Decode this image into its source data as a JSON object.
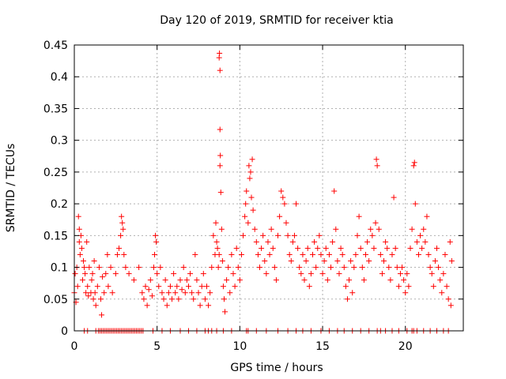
{
  "chart_data": {
    "type": "scatter",
    "title": "Day 120 of 2019, SRMTID for receiver ktia",
    "xlabel": "GPS time / hours",
    "ylabel": "SRMTID / TECUs",
    "xlim": [
      0,
      23.5
    ],
    "ylim": [
      0,
      0.45
    ],
    "xticks": [
      0,
      5,
      10,
      15,
      20
    ],
    "xtick_labels": [
      "0",
      "5",
      "10",
      "15",
      "20"
    ],
    "yticks": [
      0,
      0.05,
      0.1,
      0.15,
      0.2,
      0.25,
      0.3,
      0.35,
      0.4,
      0.45
    ],
    "ytick_labels": [
      "0",
      "0.05",
      "0.1",
      "0.15",
      "0.2",
      "0.25",
      "0.3",
      "0.35",
      "0.4",
      "0.45"
    ],
    "grid": true,
    "marker": "+",
    "color": "#ff0000",
    "series": [
      {
        "name": "SRMTID",
        "points": [
          [
            0.0,
            0.06
          ],
          [
            0.05,
            0.09
          ],
          [
            0.1,
            0.045
          ],
          [
            0.15,
            0.1
          ],
          [
            0.2,
            0.07
          ],
          [
            0.25,
            0.18
          ],
          [
            0.3,
            0.14
          ],
          [
            0.3,
            0.16
          ],
          [
            0.35,
            0.12
          ],
          [
            0.4,
            0.15
          ],
          [
            0.45,
            0.13
          ],
          [
            0.5,
            0.08
          ],
          [
            0.55,
            0.11
          ],
          [
            0.6,
            0.1
          ],
          [
            0.65,
            0.09
          ],
          [
            0.7,
            0.06
          ],
          [
            0.75,
            0.14
          ],
          [
            0.8,
            0.07
          ],
          [
            0.85,
            0.055
          ],
          [
            0.9,
            0.1
          ],
          [
            1.0,
            0.06
          ],
          [
            1.05,
            0.08
          ],
          [
            1.1,
            0.09
          ],
          [
            1.15,
            0.05
          ],
          [
            1.2,
            0.11
          ],
          [
            1.25,
            0.06
          ],
          [
            1.3,
            0.04
          ],
          [
            1.4,
            0.07
          ],
          [
            1.5,
            0.1
          ],
          [
            1.6,
            0.05
          ],
          [
            1.7,
            0.085
          ],
          [
            1.8,
            0.06
          ],
          [
            1.9,
            0.09
          ],
          [
            2.0,
            0.12
          ],
          [
            2.05,
            0.07
          ],
          [
            2.2,
            0.1
          ],
          [
            2.3,
            0.06
          ],
          [
            1.65,
            0.025
          ],
          [
            2.5,
            0.09
          ],
          [
            2.6,
            0.12
          ],
          [
            2.7,
            0.13
          ],
          [
            2.8,
            0.15
          ],
          [
            2.85,
            0.18
          ],
          [
            2.9,
            0.17
          ],
          [
            2.95,
            0.16
          ],
          [
            3.0,
            0.12
          ],
          [
            3.1,
            0.1
          ],
          [
            3.3,
            0.09
          ],
          [
            3.6,
            0.08
          ],
          [
            3.9,
            0.1
          ],
          [
            4.1,
            0.06
          ],
          [
            4.2,
            0.05
          ],
          [
            4.3,
            0.07
          ],
          [
            4.4,
            0.04
          ],
          [
            4.5,
            0.065
          ],
          [
            4.6,
            0.08
          ],
          [
            4.7,
            0.055
          ],
          [
            4.8,
            0.1
          ],
          [
            4.85,
            0.12
          ],
          [
            4.9,
            0.15
          ],
          [
            4.95,
            0.14
          ],
          [
            5.0,
            0.09
          ],
          [
            5.1,
            0.07
          ],
          [
            5.2,
            0.1
          ],
          [
            5.3,
            0.06
          ],
          [
            5.4,
            0.05
          ],
          [
            5.5,
            0.08
          ],
          [
            5.6,
            0.04
          ],
          [
            5.7,
            0.06
          ],
          [
            5.8,
            0.07
          ],
          [
            5.9,
            0.05
          ],
          [
            6.0,
            0.09
          ],
          [
            6.1,
            0.06
          ],
          [
            6.2,
            0.07
          ],
          [
            6.3,
            0.05
          ],
          [
            6.4,
            0.08
          ],
          [
            6.5,
            0.065
          ],
          [
            6.6,
            0.1
          ],
          [
            6.7,
            0.06
          ],
          [
            6.8,
            0.08
          ],
          [
            6.9,
            0.07
          ],
          [
            7.0,
            0.09
          ],
          [
            7.1,
            0.06
          ],
          [
            7.2,
            0.05
          ],
          [
            7.3,
            0.12
          ],
          [
            7.4,
            0.08
          ],
          [
            7.5,
            0.06
          ],
          [
            7.6,
            0.04
          ],
          [
            7.7,
            0.07
          ],
          [
            7.8,
            0.09
          ],
          [
            7.9,
            0.05
          ],
          [
            8.0,
            0.07
          ],
          [
            8.1,
            0.04
          ],
          [
            8.2,
            0.06
          ],
          [
            8.3,
            0.1
          ],
          [
            8.4,
            0.15
          ],
          [
            8.5,
            0.12
          ],
          [
            8.55,
            0.17
          ],
          [
            8.6,
            0.14
          ],
          [
            8.65,
            0.13
          ],
          [
            8.7,
            0.1
          ],
          [
            8.75,
            0.12
          ],
          [
            8.75,
            0.43
          ],
          [
            8.77,
            0.437
          ],
          [
            8.8,
            0.41
          ],
          [
            8.8,
            0.317
          ],
          [
            8.82,
            0.276
          ],
          [
            8.8,
            0.26
          ],
          [
            8.85,
            0.218
          ],
          [
            8.9,
            0.16
          ],
          [
            8.95,
            0.11
          ],
          [
            9.0,
            0.07
          ],
          [
            9.05,
            0.05
          ],
          [
            9.1,
            0.03
          ],
          [
            9.2,
            0.08
          ],
          [
            9.3,
            0.1
          ],
          [
            9.4,
            0.06
          ],
          [
            9.5,
            0.12
          ],
          [
            9.6,
            0.09
          ],
          [
            9.7,
            0.07
          ],
          [
            9.8,
            0.13
          ],
          [
            9.9,
            0.1
          ],
          [
            10.0,
            0.08
          ],
          [
            10.1,
            0.12
          ],
          [
            10.2,
            0.15
          ],
          [
            10.3,
            0.18
          ],
          [
            10.35,
            0.2
          ],
          [
            10.4,
            0.22
          ],
          [
            10.5,
            0.17
          ],
          [
            10.55,
            0.26
          ],
          [
            10.6,
            0.24
          ],
          [
            10.65,
            0.25
          ],
          [
            10.7,
            0.21
          ],
          [
            10.75,
            0.27
          ],
          [
            10.8,
            0.19
          ],
          [
            10.9,
            0.16
          ],
          [
            11.0,
            0.14
          ],
          [
            11.1,
            0.12
          ],
          [
            11.2,
            0.1
          ],
          [
            11.3,
            0.13
          ],
          [
            11.4,
            0.15
          ],
          [
            11.5,
            0.11
          ],
          [
            11.6,
            0.09
          ],
          [
            11.7,
            0.14
          ],
          [
            11.8,
            0.12
          ],
          [
            11.9,
            0.16
          ],
          [
            12.0,
            0.13
          ],
          [
            12.1,
            0.1
          ],
          [
            12.2,
            0.08
          ],
          [
            12.3,
            0.15
          ],
          [
            12.4,
            0.18
          ],
          [
            12.5,
            0.22
          ],
          [
            12.6,
            0.21
          ],
          [
            12.7,
            0.2
          ],
          [
            12.8,
            0.17
          ],
          [
            12.9,
            0.15
          ],
          [
            13.0,
            0.12
          ],
          [
            13.1,
            0.11
          ],
          [
            13.2,
            0.14
          ],
          [
            13.3,
            0.15
          ],
          [
            13.4,
            0.2
          ],
          [
            13.5,
            0.13
          ],
          [
            13.6,
            0.1
          ],
          [
            13.7,
            0.09
          ],
          [
            13.8,
            0.12
          ],
          [
            13.9,
            0.08
          ],
          [
            14.0,
            0.11
          ],
          [
            14.1,
            0.13
          ],
          [
            14.2,
            0.07
          ],
          [
            14.3,
            0.09
          ],
          [
            14.4,
            0.12
          ],
          [
            14.5,
            0.14
          ],
          [
            14.6,
            0.1
          ],
          [
            14.7,
            0.13
          ],
          [
            14.8,
            0.15
          ],
          [
            14.9,
            0.12
          ],
          [
            15.0,
            0.09
          ],
          [
            15.1,
            0.11
          ],
          [
            15.2,
            0.13
          ],
          [
            15.3,
            0.08
          ],
          [
            15.4,
            0.12
          ],
          [
            15.5,
            0.1
          ],
          [
            15.6,
            0.14
          ],
          [
            15.7,
            0.22
          ],
          [
            15.8,
            0.16
          ],
          [
            15.9,
            0.11
          ],
          [
            16.0,
            0.09
          ],
          [
            16.1,
            0.13
          ],
          [
            16.2,
            0.12
          ],
          [
            16.3,
            0.1
          ],
          [
            16.4,
            0.07
          ],
          [
            16.5,
            0.05
          ],
          [
            16.6,
            0.08
          ],
          [
            16.7,
            0.11
          ],
          [
            16.8,
            0.06
          ],
          [
            16.9,
            0.1
          ],
          [
            17.0,
            0.12
          ],
          [
            17.1,
            0.15
          ],
          [
            17.2,
            0.18
          ],
          [
            17.3,
            0.13
          ],
          [
            17.4,
            0.1
          ],
          [
            17.5,
            0.08
          ],
          [
            17.6,
            0.12
          ],
          [
            17.7,
            0.14
          ],
          [
            17.8,
            0.11
          ],
          [
            17.9,
            0.16
          ],
          [
            18.0,
            0.15
          ],
          [
            18.1,
            0.13
          ],
          [
            18.2,
            0.17
          ],
          [
            18.25,
            0.27
          ],
          [
            18.3,
            0.26
          ],
          [
            18.4,
            0.16
          ],
          [
            18.5,
            0.12
          ],
          [
            18.6,
            0.09
          ],
          [
            18.7,
            0.11
          ],
          [
            18.8,
            0.14
          ],
          [
            18.9,
            0.13
          ],
          [
            19.0,
            0.1
          ],
          [
            19.1,
            0.08
          ],
          [
            19.2,
            0.12
          ],
          [
            19.3,
            0.21
          ],
          [
            19.4,
            0.13
          ],
          [
            19.5,
            0.1
          ],
          [
            19.6,
            0.07
          ],
          [
            19.7,
            0.09
          ],
          [
            19.8,
            0.1
          ],
          [
            19.9,
            0.08
          ],
          [
            20.0,
            0.06
          ],
          [
            20.1,
            0.09
          ],
          [
            20.2,
            0.07
          ],
          [
            20.3,
            0.13
          ],
          [
            20.4,
            0.16
          ],
          [
            20.5,
            0.26
          ],
          [
            20.55,
            0.265
          ],
          [
            20.6,
            0.2
          ],
          [
            20.7,
            0.14
          ],
          [
            20.8,
            0.12
          ],
          [
            20.9,
            0.15
          ],
          [
            21.0,
            0.13
          ],
          [
            21.1,
            0.16
          ],
          [
            21.2,
            0.14
          ],
          [
            21.3,
            0.18
          ],
          [
            21.4,
            0.12
          ],
          [
            21.5,
            0.1
          ],
          [
            21.6,
            0.09
          ],
          [
            21.7,
            0.07
          ],
          [
            21.8,
            0.11
          ],
          [
            21.9,
            0.13
          ],
          [
            22.0,
            0.1
          ],
          [
            22.1,
            0.08
          ],
          [
            22.2,
            0.06
          ],
          [
            22.3,
            0.09
          ],
          [
            22.4,
            0.12
          ],
          [
            22.5,
            0.07
          ],
          [
            22.6,
            0.05
          ],
          [
            22.7,
            0.14
          ],
          [
            22.75,
            0.04
          ],
          [
            22.8,
            0.11
          ]
        ],
        "zero_points_x": [
          0.6,
          0.8,
          1.3,
          1.45,
          1.55,
          1.65,
          1.75,
          1.85,
          1.95,
          2.05,
          2.15,
          2.25,
          2.35,
          2.45,
          2.55,
          2.65,
          2.75,
          2.85,
          2.95,
          3.05,
          3.15,
          3.25,
          3.35,
          3.45,
          3.55,
          3.65,
          3.75,
          3.85,
          3.95,
          4.05,
          4.15,
          4.75,
          5.3,
          5.8,
          6.4,
          6.9,
          7.4,
          7.9,
          8.1,
          8.3,
          8.6,
          9.0,
          9.5,
          10.4,
          10.5,
          11.0,
          11.6,
          12.3,
          12.9,
          13.4,
          13.8,
          14.3,
          14.9,
          15.4,
          15.9,
          16.3,
          16.8,
          17.3,
          17.8,
          18.3,
          18.5,
          18.8,
          19.2,
          19.6,
          20.1,
          20.4,
          20.5,
          20.7,
          21.1,
          21.5,
          21.9,
          22.3,
          22.6
        ]
      }
    ]
  }
}
